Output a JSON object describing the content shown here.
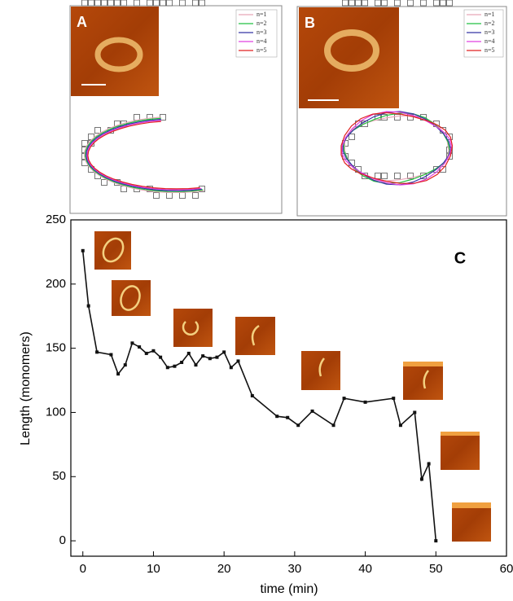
{
  "panels": {
    "a": {
      "label": "A",
      "legend": [
        {
          "name": "n=1",
          "color": "#e8a8b8"
        },
        {
          "name": "n=2",
          "color": "#22c040"
        },
        {
          "name": "n=3",
          "color": "#3535a5"
        },
        {
          "name": "n=4",
          "color": "#e040e0"
        },
        {
          "name": "n=5",
          "color": "#e02020"
        }
      ]
    },
    "b": {
      "label": "B",
      "legend": [
        {
          "name": "n=1",
          "color": "#e8a8b8"
        },
        {
          "name": "n=2",
          "color": "#22c040"
        },
        {
          "name": "n=3",
          "color": "#3535a5"
        },
        {
          "name": "n=4",
          "color": "#e040e0"
        },
        {
          "name": "n=5",
          "color": "#e02020"
        }
      ]
    }
  },
  "chart_data": {
    "type": "line",
    "panel_label": "C",
    "xlabel": "time (min)",
    "ylabel": "Length (monomers)",
    "x": [
      0,
      0.8,
      2,
      4,
      5,
      6,
      7,
      8,
      9,
      10,
      11,
      12,
      13,
      14,
      15,
      16,
      17,
      18,
      19,
      20,
      21,
      22,
      24,
      27.5,
      29,
      30.5,
      32.5,
      35.5,
      37,
      40,
      44,
      45,
      47,
      48,
      49,
      50
    ],
    "series": [
      {
        "color": "#111111",
        "values": [
          226,
          183,
          147,
          145,
          130,
          137,
          154,
          151,
          146,
          148,
          143,
          135,
          136,
          139,
          146,
          137,
          144,
          142,
          143,
          147,
          135,
          140,
          113,
          97,
          96,
          90,
          101,
          90,
          111,
          108,
          111,
          90,
          100,
          48,
          60,
          0
        ]
      }
    ],
    "xlim": [
      -1.7,
      60
    ],
    "ylim": [
      -12,
      250
    ],
    "xticks": [
      0,
      10,
      20,
      30,
      40,
      50,
      60
    ],
    "yticks": [
      0,
      50,
      100,
      150,
      200,
      250
    ]
  }
}
